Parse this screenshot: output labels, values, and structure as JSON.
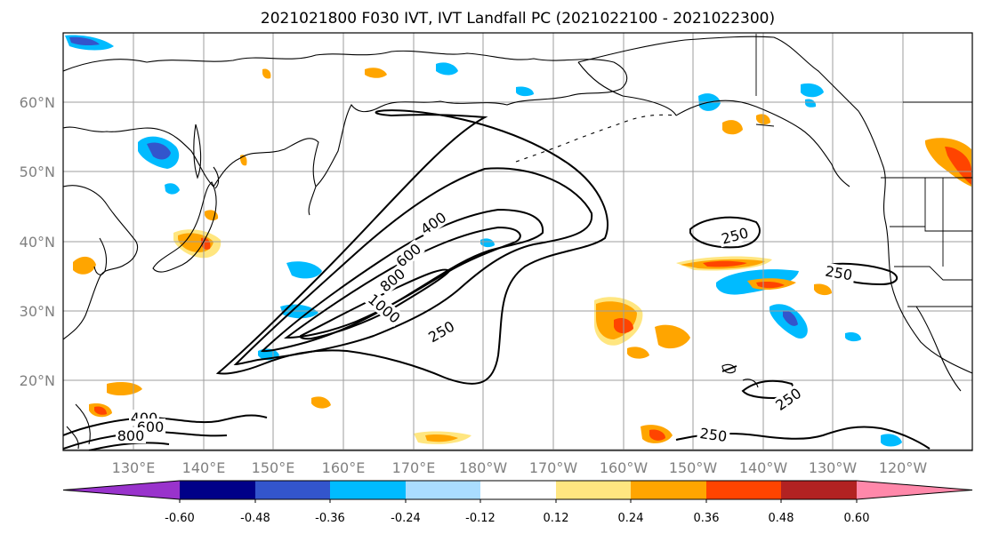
{
  "title": "2021021800 F030 IVT, IVT Landfall PC (2021022100 - 2021022300)",
  "lat_labels": [
    "60°N",
    "50°N",
    "40°N",
    "30°N",
    "20°N"
  ],
  "lon_labels": [
    "130°E",
    "140°E",
    "150°E",
    "160°E",
    "170°E",
    "180°W",
    "170°W",
    "160°W",
    "150°W",
    "140°W",
    "130°W",
    "120°W"
  ],
  "colorbar": {
    "colors": [
      "#9933cc",
      "#000088",
      "#3355cc",
      "#00bbff",
      "#aaddff",
      "#ffffff",
      "#ffe680",
      "#ffa500",
      "#ff4400",
      "#b22222",
      "#ff88aa"
    ],
    "tick_labels": [
      "-0.60",
      "-0.48",
      "-0.36",
      "-0.24",
      "-0.12",
      "0.12",
      "0.24",
      "0.36",
      "0.48",
      "0.60"
    ]
  },
  "contour_labels": [
    "400",
    "600",
    "800",
    "1000",
    "250",
    "250",
    "250",
    "250",
    "250",
    "400",
    "600",
    "800"
  ]
}
